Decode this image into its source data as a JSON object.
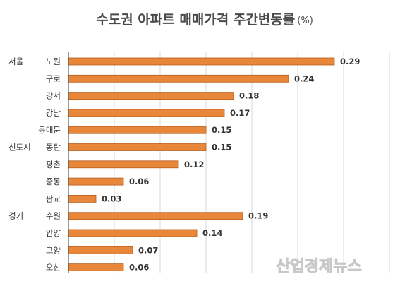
{
  "chart_data": {
    "type": "bar",
    "orientation": "horizontal",
    "title": "수도권 아파트 매매가격 주간변동률",
    "unit": "(%)",
    "groups": [
      {
        "label": "서울",
        "start": 0
      },
      {
        "label": "신도시",
        "start": 5
      },
      {
        "label": "경기",
        "start": 9
      }
    ],
    "categories": [
      "노원",
      "구로",
      "강서",
      "강남",
      "동대문",
      "동탄",
      "평촌",
      "중동",
      "판교",
      "수원",
      "안양",
      "고양",
      "오산"
    ],
    "values": [
      0.29,
      0.24,
      0.18,
      0.17,
      0.15,
      0.15,
      0.12,
      0.06,
      0.03,
      0.19,
      0.14,
      0.07,
      0.06
    ],
    "xlim": [
      0,
      0.35
    ],
    "grid": true,
    "bar_color": "#E8863A",
    "bar_border_color": "#B85E1E"
  },
  "watermark": "산업경제뉴스"
}
